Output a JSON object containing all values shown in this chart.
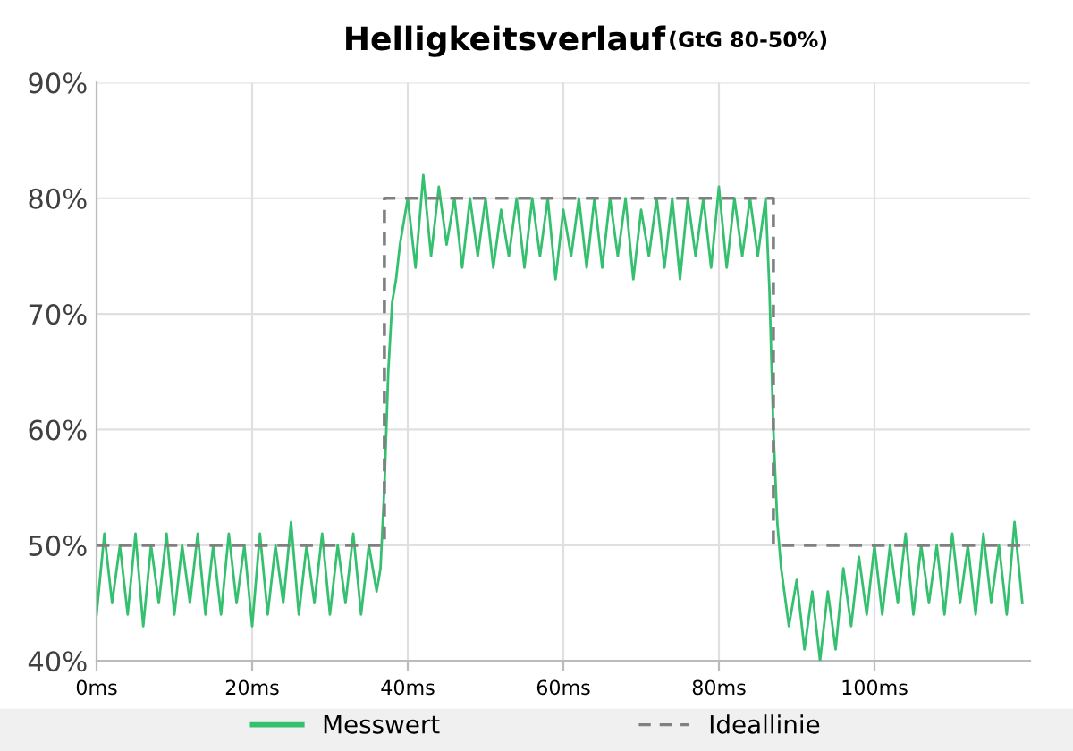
{
  "chart_data": {
    "type": "line",
    "title": "Helligkeitsverlauf",
    "subtitle": "(GtG 80-50%)",
    "xlim": [
      0,
      120
    ],
    "xticks": [
      {
        "value": 0,
        "label": "0ms"
      },
      {
        "value": 20,
        "label": "20ms"
      },
      {
        "value": 40,
        "label": "40ms"
      },
      {
        "value": 60,
        "label": "60ms"
      },
      {
        "value": 80,
        "label": "80ms"
      },
      {
        "value": 100,
        "label": "100ms"
      }
    ],
    "ylim": [
      40,
      90
    ],
    "yticks": [
      {
        "value": 40,
        "label": "40%"
      },
      {
        "value": 50,
        "label": "50%"
      },
      {
        "value": 60,
        "label": "60%"
      },
      {
        "value": 70,
        "label": "70%"
      },
      {
        "value": 80,
        "label": "80%"
      },
      {
        "value": 90,
        "label": "90%"
      }
    ],
    "grid": true,
    "legend": "bottom",
    "series": [
      {
        "name": "Messwert",
        "color": "#35c070",
        "line_style": "solid",
        "x": [
          0,
          1,
          2,
          3,
          4,
          5,
          6,
          7,
          8,
          9,
          10,
          11,
          12,
          13,
          14,
          15,
          16,
          17,
          18,
          19,
          20,
          21,
          22,
          23,
          24,
          25,
          26,
          27,
          28,
          29,
          30,
          31,
          32,
          33,
          34,
          35,
          36,
          36.5,
          37,
          37.5,
          38,
          38.5,
          39,
          40,
          41,
          42,
          43,
          44,
          45,
          46,
          47,
          48,
          49,
          50,
          51,
          52,
          53,
          54,
          55,
          56,
          57,
          58,
          59,
          60,
          61,
          62,
          63,
          64,
          65,
          66,
          67,
          68,
          69,
          70,
          71,
          72,
          73,
          74,
          75,
          76,
          77,
          78,
          79,
          80,
          81,
          82,
          83,
          84,
          85,
          86,
          86.5,
          87,
          87.5,
          88,
          89,
          90,
          91,
          92,
          93,
          94,
          95,
          96,
          97,
          98,
          99,
          100,
          101,
          102,
          103,
          104,
          105,
          106,
          107,
          108,
          109,
          110,
          111,
          112,
          113,
          114,
          115,
          116,
          117,
          118,
          119
        ],
        "values": [
          44,
          51,
          45,
          50,
          44,
          51,
          43,
          50,
          45,
          51,
          44,
          50,
          45,
          51,
          44,
          50,
          44,
          51,
          45,
          50,
          43,
          51,
          44,
          50,
          45,
          52,
          44,
          50,
          45,
          51,
          44,
          50,
          45,
          51,
          44,
          50,
          46,
          48,
          55,
          65,
          71,
          73,
          76,
          80,
          74,
          82,
          75,
          81,
          76,
          80,
          74,
          80,
          75,
          80,
          74,
          79,
          75,
          80,
          74,
          80,
          75,
          80,
          73,
          79,
          75,
          80,
          74,
          80,
          74,
          80,
          75,
          80,
          73,
          79,
          75,
          80,
          74,
          80,
          73,
          80,
          75,
          80,
          74,
          81,
          74,
          80,
          75,
          80,
          75,
          80,
          72,
          60,
          52,
          48,
          43,
          47,
          41,
          46,
          40,
          46,
          41,
          48,
          43,
          49,
          44,
          50,
          44,
          50,
          45,
          51,
          44,
          50,
          45,
          50,
          44,
          51,
          45,
          50,
          44,
          51,
          45,
          50,
          44,
          52,
          45
        ]
      },
      {
        "name": "Ideallinie",
        "color": "#808080",
        "line_style": "dashed",
        "x": [
          0,
          37,
          37,
          87,
          87,
          120
        ],
        "values": [
          50,
          50,
          80,
          80,
          50,
          50
        ]
      }
    ]
  }
}
